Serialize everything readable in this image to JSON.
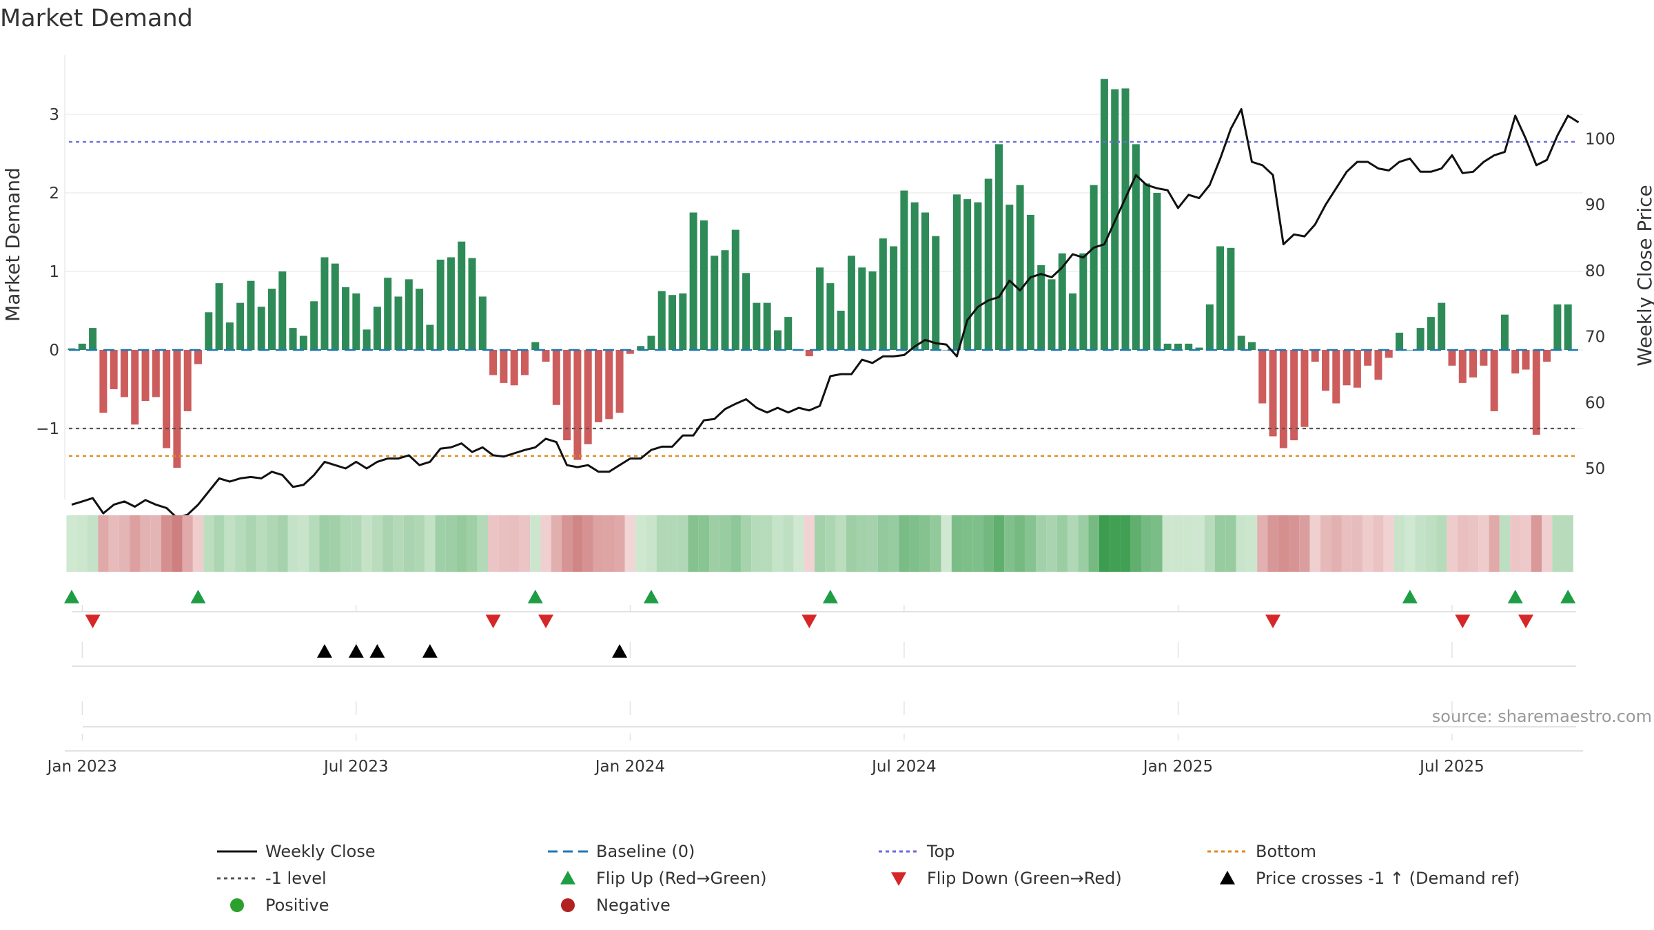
{
  "chart_data": {
    "type": "bar",
    "title": "Market Demand",
    "ylabel": "Market Demand",
    "y2label": "Weekly Close Price",
    "ylim": [
      -1.85,
      3.7
    ],
    "y2lim": [
      41,
      105
    ],
    "yticks": [
      -1,
      0,
      1,
      2,
      3
    ],
    "yticklabels": [
      "−1",
      "0",
      "1",
      "2",
      "3"
    ],
    "y2ticks": [
      50,
      60,
      70,
      80,
      90,
      100
    ],
    "y2ticklabels": [
      "50",
      "60",
      "70",
      "80",
      "90",
      "100"
    ],
    "xticks": [
      "Jan 2023",
      "Jul 2023",
      "Jan 2024",
      "Jul 2024",
      "Jan 2025",
      "Jul 2025"
    ],
    "xtick_weeks": [
      1,
      27,
      53,
      79,
      105,
      131
    ],
    "reference_lines": {
      "baseline": 0,
      "top": 2.65,
      "level_minus1": -1,
      "bottom": -1.35
    },
    "demand": [
      0.02,
      0.08,
      0.28,
      -0.8,
      -0.5,
      -0.6,
      -0.95,
      -0.65,
      -0.6,
      -1.25,
      -1.5,
      -0.78,
      -0.18,
      0.48,
      0.85,
      0.35,
      0.6,
      0.88,
      0.55,
      0.78,
      1.0,
      0.28,
      0.18,
      0.62,
      1.18,
      1.1,
      0.8,
      0.72,
      0.26,
      0.55,
      0.92,
      0.68,
      0.9,
      0.78,
      0.32,
      1.15,
      1.18,
      1.38,
      1.17,
      0.68,
      -0.32,
      -0.42,
      -0.45,
      -0.32,
      0.1,
      -0.15,
      -0.7,
      -1.15,
      -1.4,
      -1.2,
      -0.92,
      -0.88,
      -0.8,
      -0.05,
      0.05,
      0.18,
      0.75,
      0.7,
      0.72,
      1.75,
      1.65,
      1.2,
      1.27,
      1.53,
      0.98,
      0.6,
      0.6,
      0.25,
      0.42,
      0.0,
      -0.08,
      1.05,
      0.85,
      0.5,
      1.2,
      1.05,
      1.0,
      1.42,
      1.32,
      2.03,
      1.88,
      1.75,
      1.45,
      0.0,
      1.98,
      1.92,
      1.88,
      2.18,
      2.62,
      1.85,
      2.1,
      1.72,
      1.08,
      0.9,
      1.23,
      0.72,
      1.23,
      2.1,
      3.45,
      3.32,
      3.33,
      2.62,
      2.12,
      2.0,
      0.08,
      0.08,
      0.08,
      0.03,
      0.58,
      1.32,
      1.3,
      0.18,
      0.1,
      -0.68,
      -1.1,
      -1.25,
      -1.15,
      -0.98,
      -0.15,
      -0.52,
      -0.68,
      -0.45,
      -0.48,
      -0.2,
      -0.38,
      -0.1,
      0.22,
      0.0,
      0.28,
      0.42,
      0.6,
      -0.2,
      -0.42,
      -0.35,
      -0.2,
      -0.78,
      0.45,
      -0.3,
      -0.25,
      -1.08,
      -0.15,
      0.58,
      0.58
    ],
    "weekly_close": [
      44.5,
      45.0,
      45.5,
      43.2,
      44.5,
      45.0,
      44.2,
      45.2,
      44.5,
      44.0,
      42.5,
      43.0,
      44.5,
      46.5,
      48.5,
      48.0,
      48.5,
      48.7,
      48.5,
      49.5,
      49.0,
      47.2,
      47.5,
      49.0,
      51.0,
      50.5,
      50.0,
      51.0,
      50.0,
      51.0,
      51.5,
      51.5,
      52.0,
      50.5,
      51.0,
      53.0,
      53.2,
      53.8,
      52.5,
      53.2,
      52.0,
      51.8,
      52.3,
      52.8,
      53.2,
      54.5,
      54.0,
      50.5,
      50.2,
      50.5,
      49.5,
      49.5,
      50.5,
      51.5,
      51.5,
      52.8,
      53.3,
      53.3,
      55.0,
      55.0,
      57.3,
      57.5,
      59.0,
      59.8,
      60.5,
      59.2,
      58.5,
      59.2,
      58.5,
      59.2,
      58.8,
      59.5,
      64.0,
      64.3,
      64.3,
      66.5,
      66.0,
      67.0,
      67.0,
      67.2,
      68.5,
      69.5,
      69.0,
      68.8,
      67.0,
      72.5,
      74.5,
      75.5,
      76.0,
      78.5,
      77.0,
      79.0,
      79.5,
      79.0,
      80.5,
      82.5,
      82.0,
      83.5,
      84.0,
      87.5,
      91.0,
      94.5,
      93.0,
      92.5,
      92.2,
      89.5,
      91.5,
      91.0,
      93.0,
      97.0,
      101.5,
      104.5,
      96.5,
      96.0,
      94.5,
      84.0,
      85.5,
      85.2,
      87.0,
      90.0,
      92.5,
      95.0,
      96.5,
      96.5,
      95.5,
      95.2,
      96.5,
      97.0,
      95.0,
      95.0,
      95.5,
      97.5,
      94.8,
      95.0,
      96.5,
      97.5,
      98.0,
      103.5,
      100.0,
      96.0,
      96.8,
      100.5,
      103.5,
      102.5
    ],
    "flip_up_weeks": [
      0,
      12,
      44,
      55,
      72,
      127,
      137,
      142
    ],
    "flip_down_weeks": [
      2,
      40,
      45,
      70,
      114,
      132,
      138
    ],
    "price_cross_weeks": [
      24,
      27,
      29,
      34,
      52
    ],
    "colors": {
      "positive_bar": "#2e8b57",
      "negative_bar": "#cd5c5c",
      "weekly_close": "#111111",
      "baseline": "#1f77b4",
      "top": "#6a6adc",
      "level_minus1": "#555555",
      "bottom": "#e08a1e",
      "flip_up": "#1f9d45",
      "flip_down": "#d62728",
      "price_cross": "#000000",
      "positive_marker": "#2ca02c",
      "negative_marker": "#b22222"
    },
    "legend": [
      {
        "label": "Weekly Close",
        "kind": "line",
        "color": "#111111",
        "dash": ""
      },
      {
        "label": "Baseline (0)",
        "kind": "line",
        "color": "#1f77b4",
        "dash": "14,8"
      },
      {
        "label": "Top",
        "kind": "line",
        "color": "#6a6adc",
        "dash": "5,5"
      },
      {
        "label": "Bottom",
        "kind": "line",
        "color": "#e08a1e",
        "dash": "5,5"
      },
      {
        "label": "-1 level",
        "kind": "line",
        "color": "#555555",
        "dash": "5,5"
      },
      {
        "label": "Flip Up (Red→Green)",
        "kind": "tri-up",
        "color": "#1f9d45"
      },
      {
        "label": "Flip Down (Green→Red)",
        "kind": "tri-down",
        "color": "#d62728"
      },
      {
        "label": "Price crosses -1 ↑ (Demand ref)",
        "kind": "tri-up",
        "color": "#000000"
      },
      {
        "label": "Positive",
        "kind": "dot",
        "color": "#2ca02c"
      },
      {
        "label": "Negative",
        "kind": "dot",
        "color": "#b22222"
      }
    ],
    "source_text": "source: sharemaestro.com"
  }
}
